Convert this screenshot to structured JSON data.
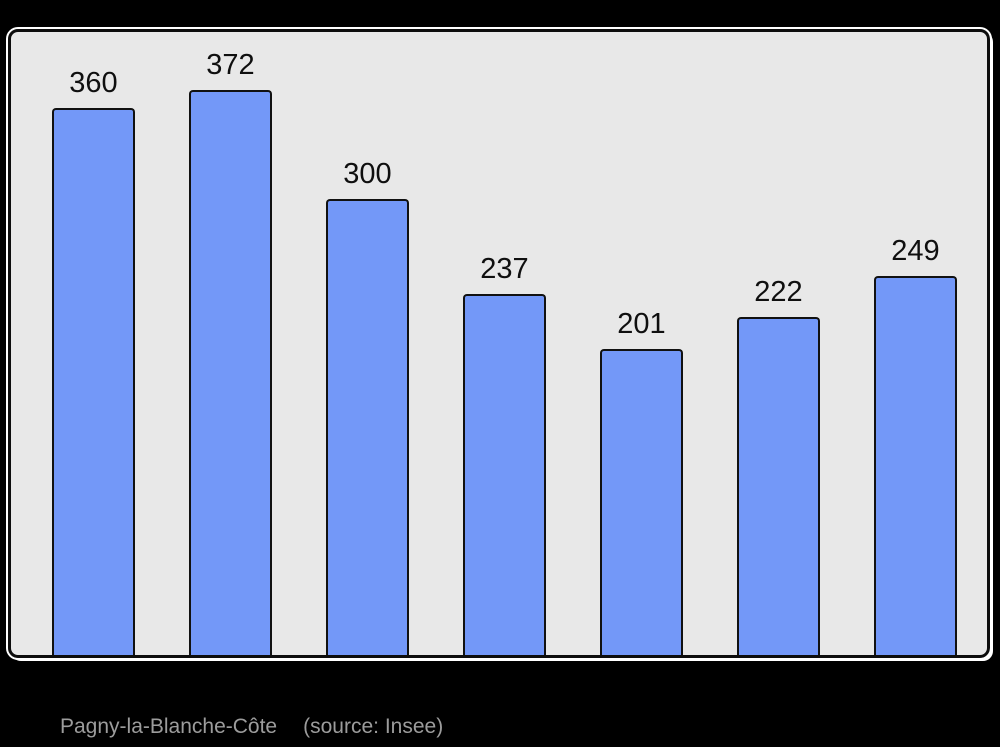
{
  "chart_data": {
    "type": "bar",
    "categories": [],
    "values": [
      360,
      372,
      300,
      237,
      201,
      222,
      249
    ],
    "value_labels": [
      "360",
      "372",
      "300",
      "237",
      "201",
      "222",
      "249"
    ],
    "title": "",
    "xlabel": "",
    "ylabel": "",
    "ylim": [
      0,
      412
    ],
    "grid": false,
    "axes": "none",
    "legend": "none",
    "value_labels_position": "above-bars",
    "colors": {
      "bar_fill": "#7398F8",
      "bar_border": "#111111",
      "plot_background": "#E8E8E8",
      "plot_border": "#0D0D0D",
      "plot_outline": "#FFFFFF",
      "page_background": "#000000",
      "value_label": "#0F0F0F",
      "caption_text": "#9C9C9C"
    }
  },
  "caption": {
    "commune": "Pagny-la-Blanche-Côte",
    "source": "(source: Insee)"
  }
}
